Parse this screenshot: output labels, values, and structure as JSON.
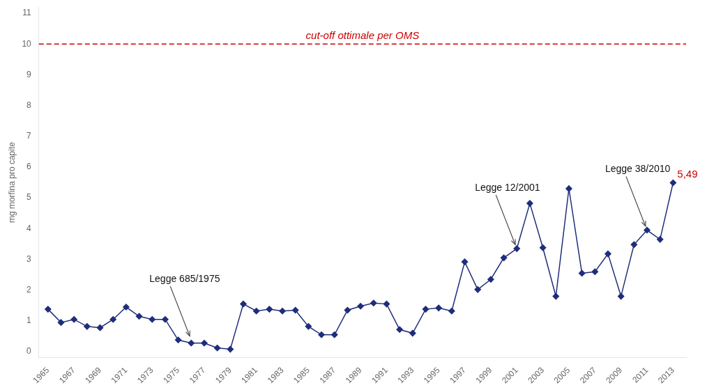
{
  "chart_data": {
    "type": "line",
    "x": [
      1965,
      1966,
      1967,
      1968,
      1969,
      1970,
      1971,
      1972,
      1973,
      1974,
      1975,
      1976,
      1977,
      1978,
      1979,
      1980,
      1981,
      1982,
      1983,
      1984,
      1985,
      1986,
      1987,
      1988,
      1989,
      1990,
      1991,
      1992,
      1993,
      1994,
      1995,
      1996,
      1997,
      1998,
      1999,
      2000,
      2001,
      2002,
      2003,
      2004,
      2005,
      2006,
      2007,
      2008,
      2009,
      2010,
      2011,
      2012,
      2013
    ],
    "values": [
      1.38,
      0.95,
      1.05,
      0.82,
      0.78,
      1.05,
      1.45,
      1.15,
      1.05,
      1.05,
      0.38,
      0.28,
      0.28,
      0.12,
      0.08,
      1.55,
      1.32,
      1.38,
      1.32,
      1.35,
      0.82,
      0.55,
      0.55,
      1.35,
      1.48,
      1.58,
      1.55,
      0.72,
      0.6,
      1.38,
      1.42,
      1.32,
      2.92,
      2.02,
      2.35,
      3.05,
      3.35,
      4.82,
      3.38,
      1.8,
      5.3,
      2.55,
      2.6,
      3.18,
      1.8,
      3.48,
      3.95,
      3.65,
      5.49
    ],
    "color": "#1f2d7b",
    "marker": "diamond",
    "ylabel": "mg morfina pro capite",
    "xlim": [
      1964.3,
      2014
    ],
    "xticks": [
      1965,
      1967,
      1969,
      1971,
      1973,
      1975,
      1977,
      1979,
      1981,
      1983,
      1985,
      1987,
      1989,
      1991,
      1993,
      1995,
      1997,
      1999,
      2001,
      2003,
      2005,
      2007,
      2009,
      2011,
      2013
    ],
    "ylim": [
      -0.2,
      11.2
    ],
    "yticks": [
      0,
      1,
      2,
      3,
      4,
      5,
      6,
      7,
      8,
      9,
      10,
      11
    ],
    "grid": false,
    "reference_lines": [
      {
        "y": 10,
        "label": "cut-off ottimale per OMS",
        "color": "#cc0000"
      }
    ],
    "annotations": [
      {
        "kind": "arrow",
        "text": "Legge 685/1975",
        "x": 1976,
        "y": 0.38
      },
      {
        "kind": "arrow",
        "text": "Legge 12/2001",
        "x": 2001,
        "y": 3.35
      },
      {
        "kind": "arrow",
        "text": "Legge 38/2010",
        "x": 2011,
        "y": 3.95
      },
      {
        "kind": "value",
        "text": "5,49",
        "x": 2013,
        "y": 5.49,
        "color": "#cc0000"
      }
    ]
  }
}
